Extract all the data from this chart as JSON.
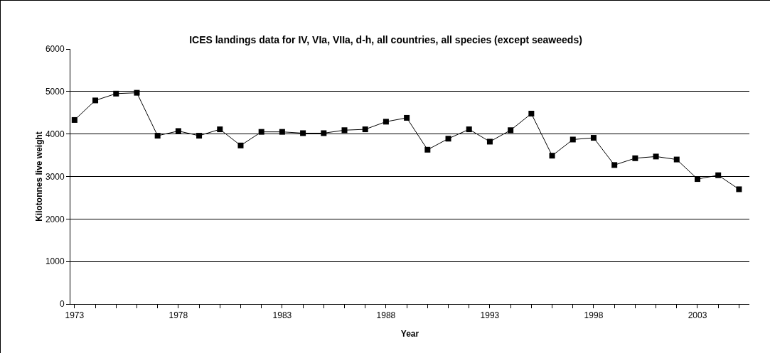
{
  "chart_data": {
    "type": "line",
    "title": "ICES landings data for IV, VIa, VIIa, d-h, all countries, all species (except seaweeds)",
    "xlabel": "Year",
    "ylabel": "Kilotonnes live weight",
    "x": [
      1973,
      1974,
      1975,
      1976,
      1977,
      1978,
      1979,
      1980,
      1981,
      1982,
      1983,
      1984,
      1985,
      1986,
      1987,
      1988,
      1989,
      1990,
      1991,
      1992,
      1993,
      1994,
      1995,
      1996,
      1997,
      1998,
      1999,
      2000,
      2001,
      2002,
      2003,
      2004,
      2005
    ],
    "series": [
      {
        "color": "#000000",
        "values": [
          4330,
          4790,
          4950,
          4970,
          3960,
          4070,
          3960,
          4110,
          3730,
          4050,
          4050,
          4020,
          4020,
          4090,
          4110,
          4290,
          4380,
          3630,
          3890,
          4110,
          3820,
          4090,
          4480,
          3490,
          3870,
          3910,
          3270,
          3430,
          3470,
          3400,
          2940,
          3030,
          2700
        ]
      }
    ],
    "xlim": [
      1972.8,
      2005.5
    ],
    "xticks": [
      1973,
      {
        "value": 1974,
        "label": null
      },
      {
        "value": 1975,
        "label": null
      },
      {
        "value": 1976,
        "label": null
      },
      {
        "value": 1977,
        "label": null
      },
      1978,
      {
        "value": 1979,
        "label": null
      },
      {
        "value": 1980,
        "label": null
      },
      {
        "value": 1981,
        "label": null
      },
      {
        "value": 1982,
        "label": null
      },
      1983,
      {
        "value": 1984,
        "label": null
      },
      {
        "value": 1985,
        "label": null
      },
      {
        "value": 1986,
        "label": null
      },
      {
        "value": 1987,
        "label": null
      },
      1988,
      {
        "value": 1989,
        "label": null
      },
      {
        "value": 1990,
        "label": null
      },
      {
        "value": 1991,
        "label": null
      },
      {
        "value": 1992,
        "label": null
      },
      1993,
      {
        "value": 1994,
        "label": null
      },
      {
        "value": 1995,
        "label": null
      },
      {
        "value": 1996,
        "label": null
      },
      {
        "value": 1997,
        "label": null
      },
      1998,
      {
        "value": 1999,
        "label": null
      },
      {
        "value": 2000,
        "label": null
      },
      {
        "value": 2001,
        "label": null
      },
      {
        "value": 2002,
        "label": null
      },
      2003,
      {
        "value": 2004,
        "label": null
      },
      {
        "value": 2005,
        "label": null
      }
    ],
    "ylim": [
      0,
      6000
    ],
    "yticks": [
      0,
      1000,
      2000,
      3000,
      4000,
      5000,
      6000
    ],
    "grid": "y",
    "marker": "square",
    "line_style": "solid"
  }
}
